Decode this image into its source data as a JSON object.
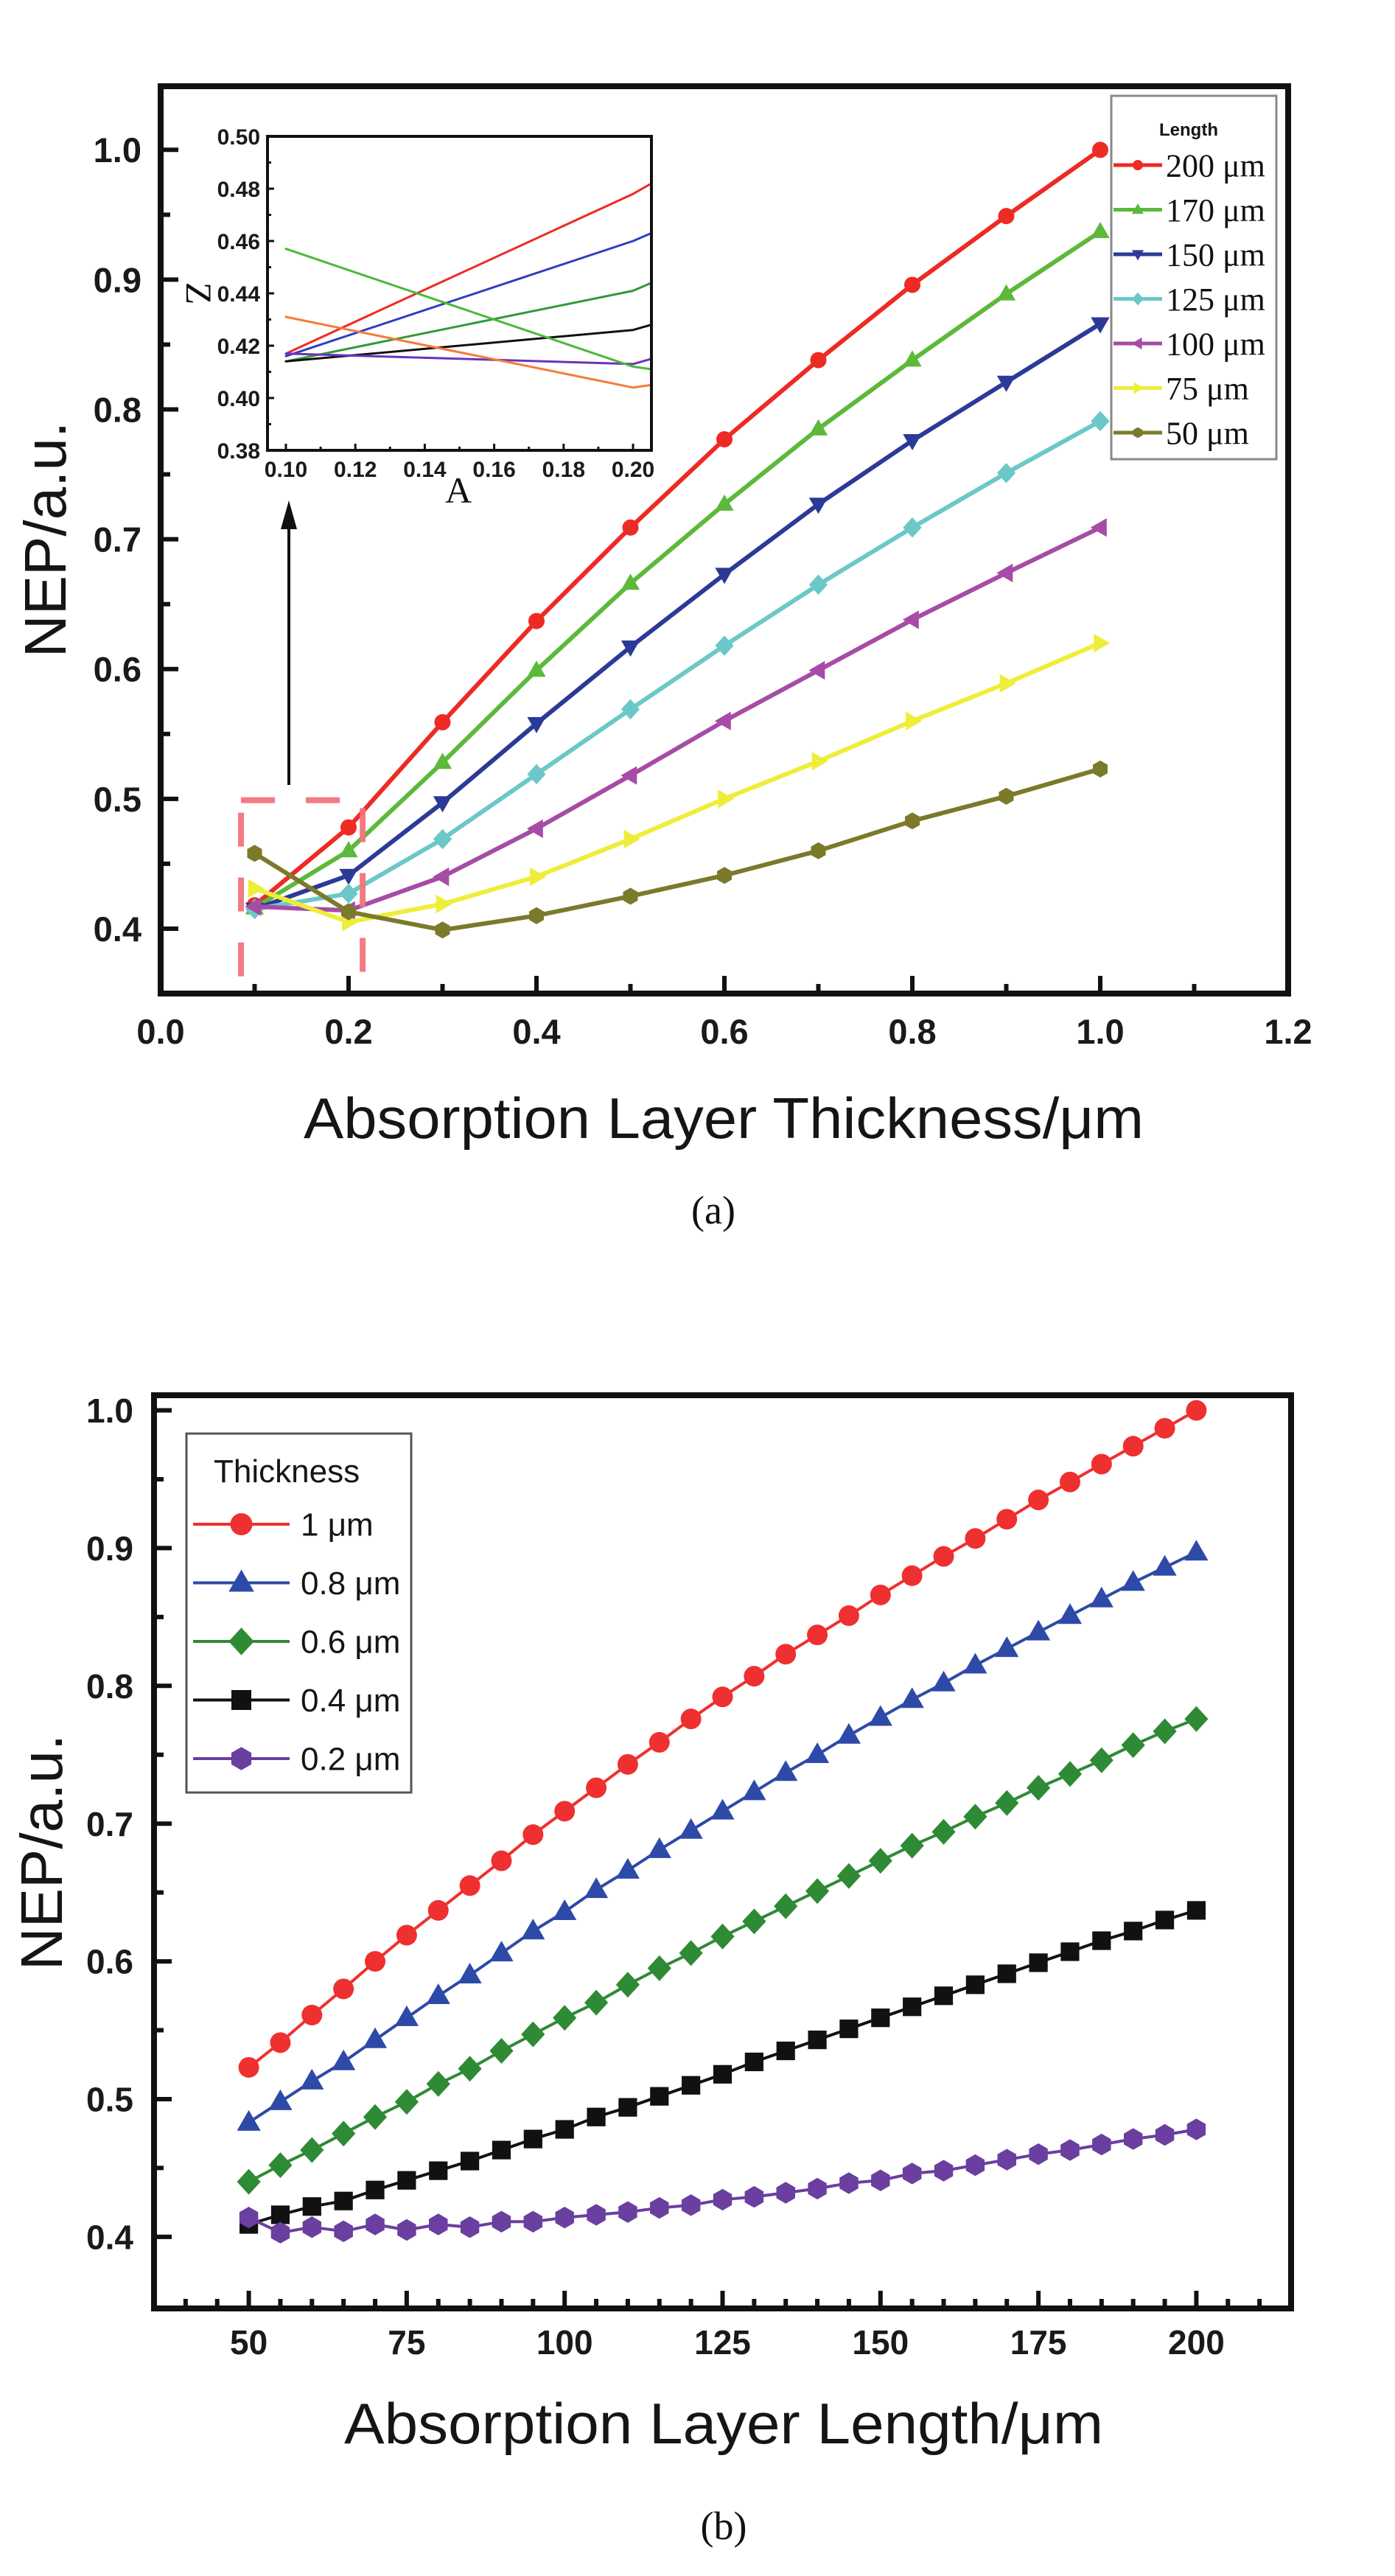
{
  "figure": {
    "caption_a": "(a)",
    "caption_b": "(b)"
  },
  "chart_data": [
    {
      "id": "a",
      "type": "line",
      "title": "",
      "xlabel": "Absorption Layer Thickness/μm",
      "ylabel": "NEP/a.u.",
      "xlim": [
        0.0,
        1.2
      ],
      "ylim": [
        0.35,
        1.049
      ],
      "xticks": [
        0.0,
        0.2,
        0.4,
        0.6,
        0.8,
        1.0,
        1.2
      ],
      "xtick_labels": [
        "0.0",
        "0.2",
        "0.4",
        "0.6",
        "0.8",
        "1.0",
        "1.2"
      ],
      "yticks": [
        0.4,
        0.5,
        0.6,
        0.7,
        0.8,
        0.9,
        1.0
      ],
      "ytick_labels": [
        "0.4",
        "0.5",
        "0.6",
        "0.7",
        "0.8",
        "0.9",
        "1.0"
      ],
      "grid": false,
      "legend_title": "Length",
      "legend_position": "top-right",
      "x": [
        0.1,
        0.2,
        0.3,
        0.4,
        0.5,
        0.6,
        0.7,
        0.8,
        0.9,
        1.0
      ],
      "series": [
        {
          "name": "200 μm",
          "color": "#ee2a24",
          "marker": "circle",
          "values": [
            0.418,
            0.478,
            0.559,
            0.637,
            0.709,
            0.777,
            0.838,
            0.896,
            0.949,
            1.0
          ]
        },
        {
          "name": "170 μm",
          "color": "#5cb93a",
          "marker": "triangle-up",
          "values": [
            0.416,
            0.46,
            0.528,
            0.599,
            0.666,
            0.727,
            0.785,
            0.838,
            0.889,
            0.937
          ]
        },
        {
          "name": "150 μm",
          "color": "#2b3a97",
          "marker": "triangle-down",
          "values": [
            0.415,
            0.441,
            0.497,
            0.558,
            0.617,
            0.673,
            0.727,
            0.776,
            0.821,
            0.866
          ]
        },
        {
          "name": "125 μm",
          "color": "#6cc8c8",
          "marker": "diamond",
          "values": [
            0.415,
            0.427,
            0.469,
            0.519,
            0.569,
            0.618,
            0.665,
            0.709,
            0.751,
            0.791
          ]
        },
        {
          "name": "100 μm",
          "color": "#a64ca6",
          "marker": "triangle-left",
          "values": [
            0.417,
            0.414,
            0.44,
            0.477,
            0.518,
            0.56,
            0.599,
            0.638,
            0.674,
            0.709
          ]
        },
        {
          "name": "75 μm",
          "color": "#eeee3a",
          "marker": "triangle-right",
          "values": [
            0.431,
            0.405,
            0.419,
            0.44,
            0.469,
            0.5,
            0.529,
            0.56,
            0.589,
            0.62
          ]
        },
        {
          "name": "50 μm",
          "color": "#7b7a2a",
          "marker": "hexagon",
          "values": [
            0.458,
            0.413,
            0.399,
            0.41,
            0.425,
            0.441,
            0.46,
            0.483,
            0.502,
            0.523
          ]
        }
      ],
      "annotation": {
        "zoom_box_x": [
          0.0855,
          0.215
        ],
        "zoom_box_y": [
          0.35,
          0.499
        ]
      },
      "inset": {
        "type": "line",
        "xlabel": "A",
        "ylabel": "Z",
        "xlim": [
          0.0947,
          0.2053
        ],
        "ylim": [
          0.38,
          0.5
        ],
        "xticks": [
          0.1,
          0.12,
          0.14,
          0.16,
          0.18,
          0.2
        ],
        "xtick_labels": [
          "0.10",
          "0.12",
          "0.14",
          "0.16",
          "0.18",
          "0.20"
        ],
        "yticks": [
          0.38,
          0.4,
          0.42,
          0.44,
          0.46,
          0.48,
          0.5
        ],
        "ytick_labels": [
          "0.38",
          "0.40",
          "0.42",
          "0.44",
          "0.46",
          "0.48",
          "0.50"
        ],
        "x": [
          0.1,
          0.2,
          0.2053
        ],
        "series": [
          {
            "name": "red",
            "color": "#ee2a24",
            "values": [
              0.417,
              0.478,
              0.482
            ]
          },
          {
            "name": "blue",
            "color": "#2d3fc0",
            "values": [
              0.416,
              0.46,
              0.463
            ]
          },
          {
            "name": "dark-green",
            "color": "#2f9a3a",
            "values": [
              0.414,
              0.441,
              0.444
            ]
          },
          {
            "name": "black",
            "color": "#111111",
            "values": [
              0.414,
              0.426,
              0.428
            ]
          },
          {
            "name": "purple",
            "color": "#6a34b8",
            "values": [
              0.417,
              0.413,
              0.415
            ]
          },
          {
            "name": "light-green",
            "color": "#4cb83a",
            "values": [
              0.457,
              0.412,
              0.411
            ]
          },
          {
            "name": "orange",
            "color": "#f57a3a",
            "values": [
              0.431,
              0.404,
              0.405
            ]
          }
        ]
      }
    },
    {
      "id": "b",
      "type": "line",
      "title": "",
      "xlabel": "Absorption Layer Length/μm",
      "ylabel": "NEP/a.u.",
      "xlim": [
        35,
        215
      ],
      "ylim": [
        0.348,
        1.011
      ],
      "xticks": [
        50,
        75,
        100,
        125,
        150,
        175,
        200
      ],
      "xtick_labels": [
        "50",
        "75",
        "100",
        "125",
        "150",
        "175",
        "200"
      ],
      "yticks": [
        0.4,
        0.5,
        0.6,
        0.7,
        0.8,
        0.9,
        1.0
      ],
      "ytick_labels": [
        "0.4",
        "0.5",
        "0.6",
        "0.7",
        "0.8",
        "0.9",
        "1.0"
      ],
      "grid": false,
      "legend_title": "Thickness",
      "legend_position": "top-left",
      "x": [
        50,
        55,
        60,
        65,
        70,
        75,
        80,
        85,
        90,
        95,
        100,
        105,
        110,
        115,
        120,
        125,
        130,
        135,
        140,
        145,
        150,
        155,
        160,
        165,
        170,
        175,
        180,
        185,
        190,
        195,
        200
      ],
      "series": [
        {
          "name": "1 μm",
          "color": "#ee3030",
          "marker": "circle",
          "values": [
            0.523,
            0.541,
            0.561,
            0.58,
            0.6,
            0.619,
            0.637,
            0.655,
            0.673,
            0.692,
            0.709,
            0.726,
            0.743,
            0.759,
            0.776,
            0.792,
            0.807,
            0.823,
            0.837,
            0.851,
            0.866,
            0.88,
            0.894,
            0.907,
            0.921,
            0.935,
            0.948,
            0.961,
            0.974,
            0.987,
            1.0
          ]
        },
        {
          "name": "0.8 μm",
          "color": "#2e4aa8",
          "marker": "triangle-up",
          "values": [
            0.483,
            0.498,
            0.513,
            0.527,
            0.543,
            0.559,
            0.575,
            0.59,
            0.606,
            0.622,
            0.636,
            0.652,
            0.666,
            0.681,
            0.695,
            0.709,
            0.723,
            0.737,
            0.75,
            0.764,
            0.777,
            0.79,
            0.802,
            0.815,
            0.827,
            0.839,
            0.851,
            0.863,
            0.875,
            0.886,
            0.897
          ]
        },
        {
          "name": "0.6 μm",
          "color": "#2f8a35",
          "marker": "diamond",
          "values": [
            0.44,
            0.452,
            0.463,
            0.475,
            0.487,
            0.498,
            0.511,
            0.522,
            0.535,
            0.547,
            0.559,
            0.57,
            0.583,
            0.595,
            0.606,
            0.618,
            0.629,
            0.64,
            0.651,
            0.662,
            0.673,
            0.684,
            0.694,
            0.705,
            0.715,
            0.726,
            0.736,
            0.746,
            0.757,
            0.767,
            0.776
          ]
        },
        {
          "name": "0.4 μm",
          "color": "#111111",
          "marker": "square",
          "values": [
            0.409,
            0.416,
            0.422,
            0.426,
            0.434,
            0.441,
            0.448,
            0.455,
            0.463,
            0.471,
            0.478,
            0.487,
            0.494,
            0.502,
            0.51,
            0.518,
            0.527,
            0.535,
            0.543,
            0.551,
            0.559,
            0.567,
            0.575,
            0.583,
            0.591,
            0.599,
            0.607,
            0.615,
            0.622,
            0.63,
            0.637
          ]
        },
        {
          "name": "0.2 μm",
          "color": "#6a3fa0",
          "marker": "hexagon",
          "values": [
            0.414,
            0.403,
            0.407,
            0.404,
            0.409,
            0.405,
            0.409,
            0.407,
            0.411,
            0.411,
            0.414,
            0.416,
            0.418,
            0.421,
            0.423,
            0.427,
            0.429,
            0.432,
            0.435,
            0.439,
            0.441,
            0.446,
            0.448,
            0.452,
            0.456,
            0.46,
            0.463,
            0.467,
            0.471,
            0.474,
            0.478
          ]
        }
      ]
    }
  ]
}
